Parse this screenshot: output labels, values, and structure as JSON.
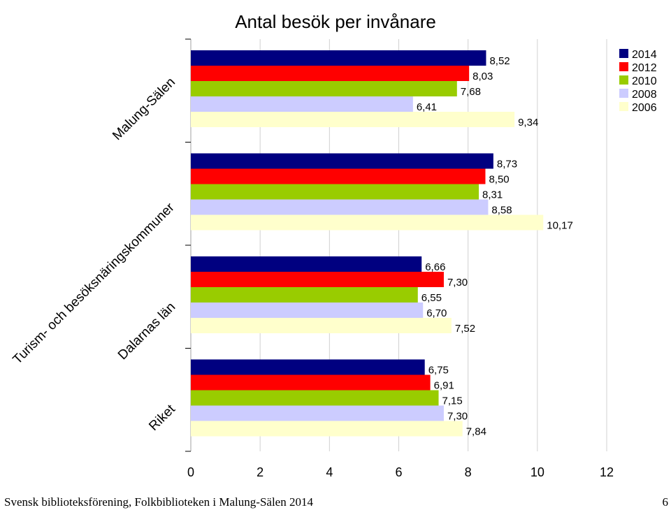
{
  "chart_data": {
    "type": "bar",
    "orientation": "horizontal",
    "title": "Antal besök per invånare",
    "categories": [
      "Malung-Sälen",
      "Turism- och besöksnäringskommuner",
      "Dalarnas län",
      "Riket"
    ],
    "series": [
      {
        "name": "2014",
        "color": "#000080",
        "values": [
          8.52,
          8.73,
          6.66,
          6.75
        ]
      },
      {
        "name": "2012",
        "color": "#ff0000",
        "values": [
          8.03,
          8.5,
          7.3,
          6.91
        ]
      },
      {
        "name": "2010",
        "color": "#99cc00",
        "values": [
          7.68,
          8.31,
          6.55,
          7.15
        ]
      },
      {
        "name": "2008",
        "color": "#ccccff",
        "values": [
          6.41,
          8.58,
          6.7,
          7.3
        ]
      },
      {
        "name": "2006",
        "color": "#ffffcc",
        "values": [
          9.34,
          10.17,
          7.52,
          7.84
        ]
      }
    ],
    "value_labels": [
      [
        "8,52",
        "8,03",
        "7,68",
        "6,41",
        "9,34"
      ],
      [
        "8,73",
        "8,50",
        "8,31",
        "8,58",
        "10,17"
      ],
      [
        "6,66",
        "7,30",
        "6,55",
        "6,70",
        "7,52"
      ],
      [
        "6,75",
        "6,91",
        "7,15",
        "7,30",
        "7,84"
      ]
    ],
    "xlim": [
      0,
      12
    ],
    "x_ticks": [
      "0",
      "2",
      "4",
      "6",
      "8",
      "10",
      "12"
    ],
    "grid": "vertical",
    "legend_position": "top-right",
    "xlabel": "",
    "ylabel": ""
  },
  "footer": {
    "source": "Svensk biblioteksförening, Folkbiblioteken i Malung-Sälen 2014",
    "page_number": "6"
  }
}
